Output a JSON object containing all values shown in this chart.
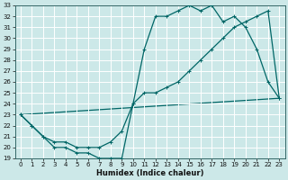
{
  "xlabel": "Humidex (Indice chaleur)",
  "background_color": "#cce8e8",
  "grid_color": "#b0d8d8",
  "line_color": "#006666",
  "xlim": [
    -0.5,
    23.5
  ],
  "ylim": [
    19,
    33
  ],
  "xticks": [
    0,
    1,
    2,
    3,
    4,
    5,
    6,
    7,
    8,
    9,
    10,
    11,
    12,
    13,
    14,
    15,
    16,
    17,
    18,
    19,
    20,
    21,
    22,
    23
  ],
  "yticks": [
    19,
    20,
    21,
    22,
    23,
    24,
    25,
    26,
    27,
    28,
    29,
    30,
    31,
    32,
    33
  ],
  "line1_x": [
    0,
    1,
    2,
    3,
    4,
    5,
    6,
    7,
    8,
    9,
    10,
    11,
    12,
    13,
    14,
    15,
    16,
    17,
    18,
    19,
    20,
    21,
    22,
    23
  ],
  "line1_y": [
    23,
    22,
    21,
    20,
    20,
    19.5,
    19.5,
    19,
    19,
    19,
    24,
    29,
    32,
    32,
    32.5,
    33,
    32.5,
    33,
    31.5,
    32,
    31,
    29,
    26,
    24.5
  ],
  "line2_x": [
    0,
    1,
    2,
    3,
    4,
    5,
    6,
    7,
    8,
    9,
    10,
    11,
    12,
    13,
    14,
    15,
    16,
    17,
    18,
    19,
    20,
    21,
    22,
    23
  ],
  "line2_y": [
    23,
    22,
    21,
    20.5,
    20.5,
    20,
    20,
    20,
    20.5,
    21.5,
    24,
    25,
    25,
    25.5,
    26,
    27,
    28,
    29,
    30,
    31,
    31.5,
    32,
    32.5,
    24.5
  ],
  "line3_x": [
    0,
    23
  ],
  "line3_y": [
    23,
    24.5
  ],
  "marker_line1": true,
  "marker_line2": true,
  "marker_line3": false
}
